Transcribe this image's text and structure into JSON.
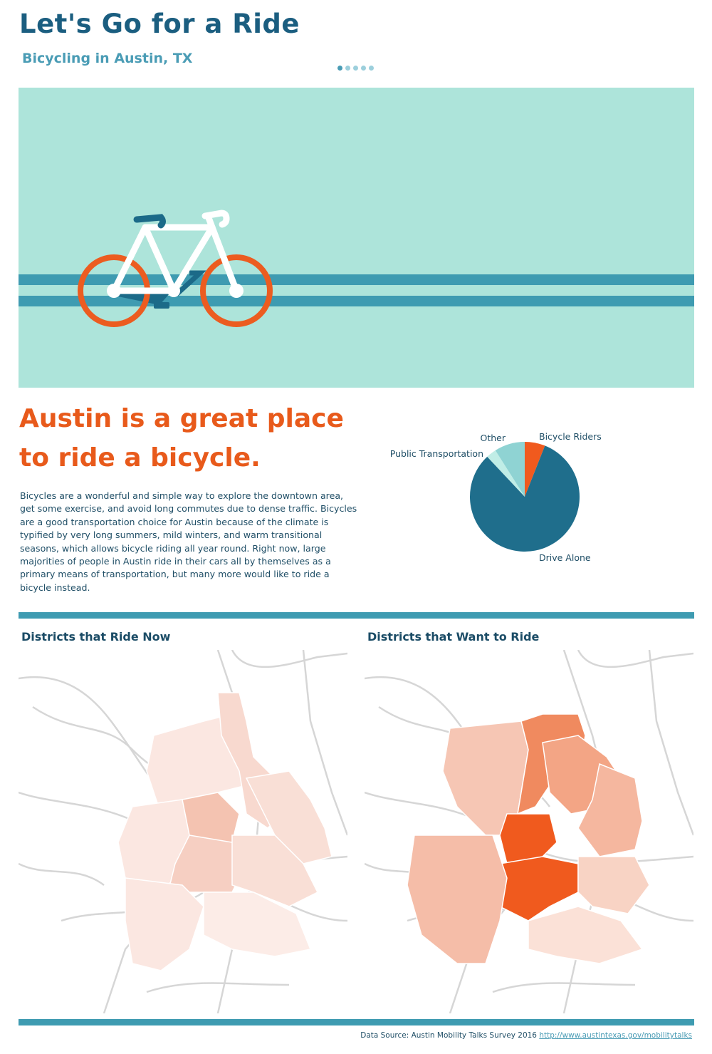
{
  "header": {
    "title": "Let's Go for a Ride",
    "subtitle": "Bicycling in Austin, TX",
    "pager": {
      "count": 5,
      "active_index": 0
    }
  },
  "colors": {
    "dark_teal": "#1b5e80",
    "teal": "#3e9bb1",
    "mint": "#ade4da",
    "orange": "#f05a1e",
    "drive_alone": "#1f6e8c",
    "public_transportation": "#c0ede6",
    "other": "#8fd3d3"
  },
  "hero": {
    "icon": "bicycle-icon"
  },
  "intro": {
    "headline_line1": "Austin is a great place",
    "headline_line2": "to ride a bicycle.",
    "body": "Bicycles are a wonderful and simple way to explore the downtown area, get some exercise, and avoid long commutes due to dense traffic. Bicycles are a good transportation choice for Austin because of the climate is typified by very long summers, mild winters, and warm transitional seasons, which allows bicycle riding all year round. Right now, large majorities of people in Austin ride in their cars all by themselves as a primary means of transportation, but many more would like to ride a bicycle instead."
  },
  "chart_data": {
    "type": "pie",
    "slices": [
      {
        "label": "Bicycle Riders",
        "value": 6
      },
      {
        "label": "Drive Alone",
        "value": 82
      },
      {
        "label": "Public Transportation",
        "value": 3
      },
      {
        "label": "Other",
        "value": 9
      }
    ]
  },
  "maps": {
    "ride_now": {
      "title": "Districts that Ride Now"
    },
    "want_to_ride": {
      "title": "Districts that Want to Ride"
    }
  },
  "footer": {
    "source_label": "Data Source: Austin Mobility Talks Survey 2016",
    "source_link": "http://www.austintexas.gov/mobilitytalks"
  }
}
